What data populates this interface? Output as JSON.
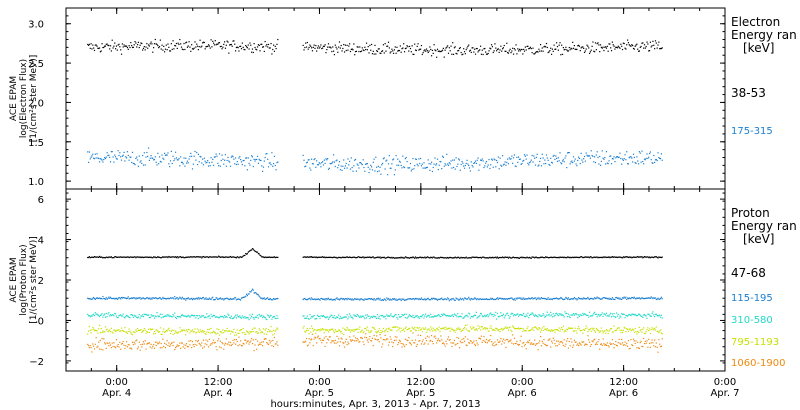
{
  "chart_data": [
    {
      "type": "scatter",
      "ylabel": [
        "ACE EPAM",
        "log(Electron Flux)",
        "[1/(cm²s ster MeV)]"
      ],
      "ylim": [
        0.9,
        3.2
      ],
      "yticks": [
        1.0,
        1.5,
        2.0,
        2.5,
        3.0
      ],
      "ytick_labels": [
        "1.0",
        "1.5",
        "2.0",
        "2.5",
        "3.0"
      ],
      "legend_title": [
        "Electron",
        "Energy ran",
        "[keV]"
      ],
      "series": [
        {
          "name": "38-53",
          "mean": 2.7,
          "spread": 0.07,
          "color": "#000000"
        },
        {
          "name": "175-315",
          "mean": 1.26,
          "spread": 0.1,
          "color": "#1a7fd1"
        }
      ]
    },
    {
      "type": "scatter",
      "ylabel": [
        "ACE EPAM",
        "log(Proton Flux)",
        "[1/(cm²s ster MeV)]"
      ],
      "ylim": [
        -2.5,
        6.5
      ],
      "yticks": [
        -2,
        0,
        2,
        4,
        6
      ],
      "ytick_labels": [
        "−2",
        "0",
        "2",
        "4",
        "6"
      ],
      "legend_title": [
        "Proton",
        "Energy ran",
        "[keV]"
      ],
      "series": [
        {
          "name": "47-68",
          "mean": 3.15,
          "spread": 0.03,
          "color": "#000000"
        },
        {
          "name": "115-195",
          "mean": 1.1,
          "spread": 0.06,
          "color": "#1a7fd1"
        },
        {
          "name": "310-580",
          "mean": 0.25,
          "spread": 0.12,
          "color": "#1fd9c8"
        },
        {
          "name": "795-1193",
          "mean": -0.45,
          "spread": 0.16,
          "color": "#c6e000"
        },
        {
          "name": "1060-1900",
          "mean": -1.05,
          "spread": 0.28,
          "color": "#ee8a10"
        }
      ]
    }
  ],
  "time_axis": {
    "xlim": [
      "2013-04-03 18:00",
      "2013-04-07 00:00"
    ],
    "gap": [
      "2013-04-04 19:00",
      "2013-04-04 22:00"
    ],
    "data_end": "2013-04-06 16:30",
    "ticks": [
      {
        "time": "2013-04-04 00:00",
        "line1": "0:00",
        "line2": "Apr. 4"
      },
      {
        "time": "2013-04-04 12:00",
        "line1": "12:00",
        "line2": "Apr. 4"
      },
      {
        "time": "2013-04-05 00:00",
        "line1": "0:00",
        "line2": "Apr. 5"
      },
      {
        "time": "2013-04-05 12:00",
        "line1": "12:00",
        "line2": "Apr. 5"
      },
      {
        "time": "2013-04-06 00:00",
        "line1": "0:00",
        "line2": "Apr. 6"
      },
      {
        "time": "2013-04-06 12:00",
        "line1": "12:00",
        "line2": "Apr. 6"
      },
      {
        "time": "2013-04-07 00:00",
        "line1": "0:00",
        "line2": "Apr. 7"
      }
    ],
    "xlabel": "hours:minutes, Apr.  3, 2013 - Apr.  7, 2013"
  }
}
